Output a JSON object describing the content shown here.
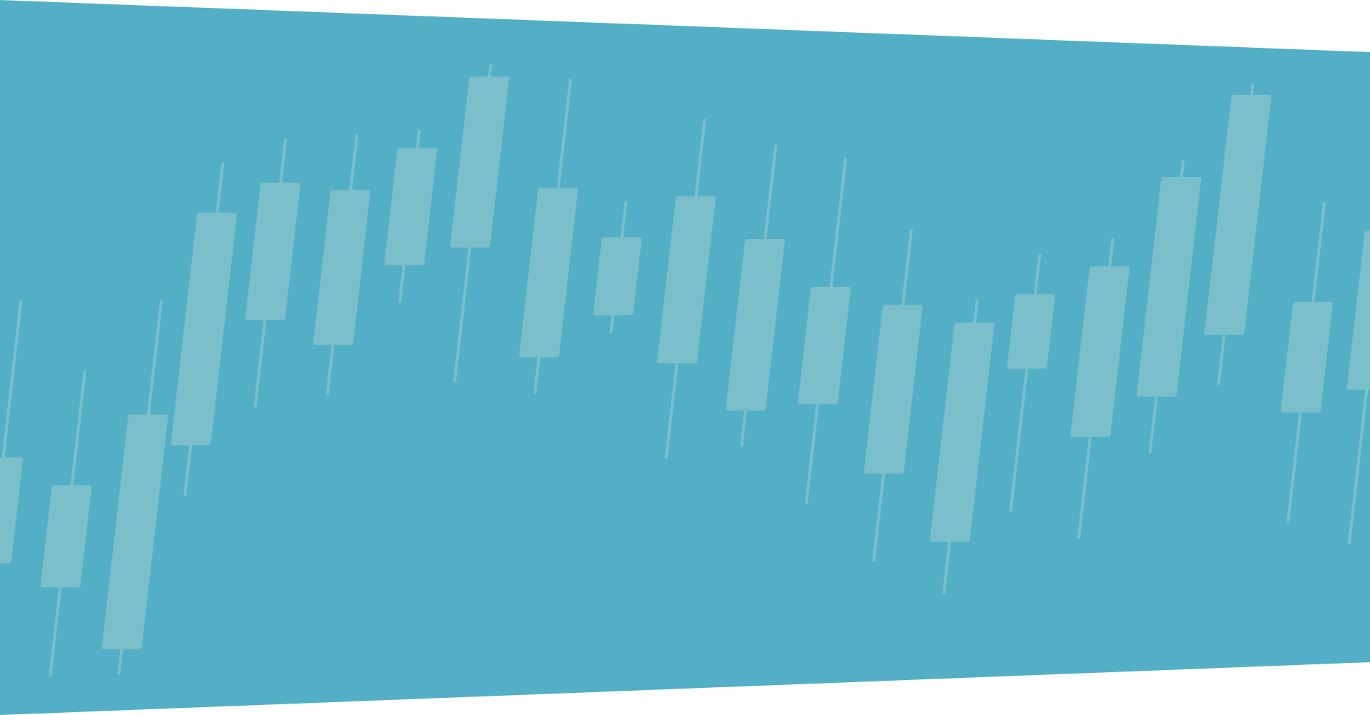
{
  "colors": {
    "background": "#ffffff",
    "banner": "#52afc5",
    "candle": "#7bbfcb"
  },
  "candles": [
    {
      "high": 0.59,
      "open": 0.345,
      "close": 0.18,
      "low": 0.06
    },
    {
      "high": 0.48,
      "open": 0.3,
      "close": 0.14,
      "low": 0.0
    },
    {
      "high": 0.59,
      "open": 0.41,
      "close": 0.04,
      "low": 0.0
    },
    {
      "high": 0.81,
      "open": 0.73,
      "close": 0.36,
      "low": 0.28
    },
    {
      "high": 0.85,
      "open": 0.78,
      "close": 0.56,
      "low": 0.42
    },
    {
      "high": 0.86,
      "open": 0.77,
      "close": 0.52,
      "low": 0.44
    },
    {
      "high": 0.87,
      "open": 0.84,
      "close": 0.65,
      "low": 0.59
    },
    {
      "high": 0.98,
      "open": 0.96,
      "close": 0.68,
      "low": 0.46
    },
    {
      "high": 0.96,
      "open": 0.78,
      "close": 0.5,
      "low": 0.44
    },
    {
      "high": 0.76,
      "open": 0.7,
      "close": 0.57,
      "low": 0.54
    },
    {
      "high": 0.9,
      "open": 0.77,
      "close": 0.49,
      "low": 0.33
    },
    {
      "high": 0.86,
      "open": 0.7,
      "close": 0.41,
      "low": 0.35
    },
    {
      "high": 0.84,
      "open": 0.62,
      "close": 0.42,
      "low": 0.25
    },
    {
      "high": 0.72,
      "open": 0.59,
      "close": 0.3,
      "low": 0.15
    },
    {
      "high": 0.6,
      "open": 0.56,
      "close": 0.18,
      "low": 0.09
    },
    {
      "high": 0.68,
      "open": 0.61,
      "close": 0.48,
      "low": 0.23
    },
    {
      "high": 0.71,
      "open": 0.66,
      "close": 0.36,
      "low": 0.18
    },
    {
      "high": 0.85,
      "open": 0.82,
      "close": 0.43,
      "low": 0.33
    },
    {
      "high": 0.99,
      "open": 0.97,
      "close": 0.54,
      "low": 0.45
    },
    {
      "high": 0.78,
      "open": 0.6,
      "close": 0.4,
      "low": 0.2
    },
    {
      "high": 0.75,
      "open": 0.73,
      "close": 0.44,
      "low": 0.16
    }
  ]
}
